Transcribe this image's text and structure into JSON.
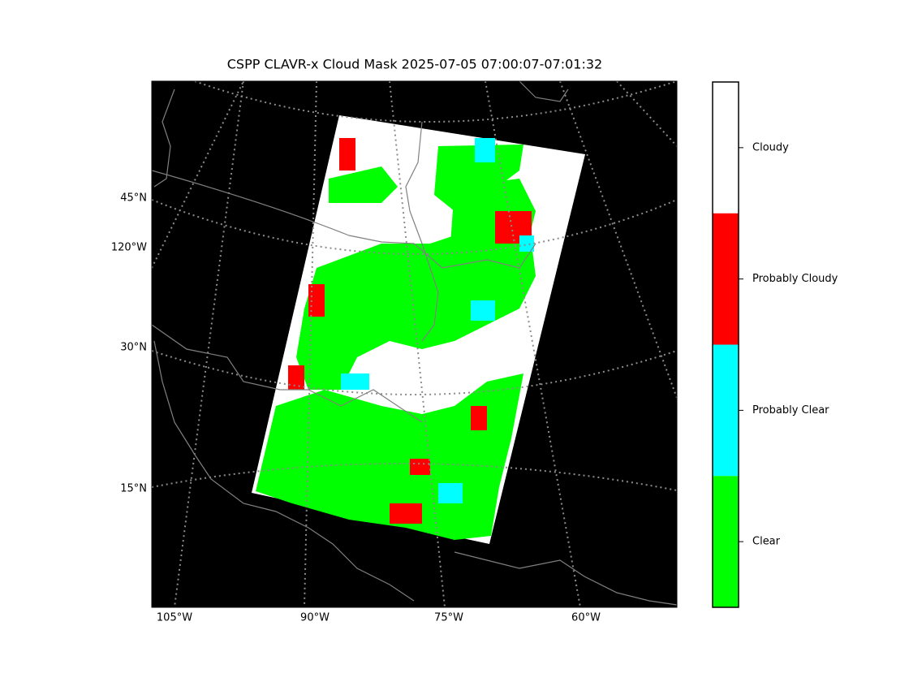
{
  "title": "CSPP CLAVR-x Cloud Mask 2025-07-05 07:00:07-07:01:32",
  "map": {
    "lat_labels": [
      "45°N",
      "120°W",
      "30°N",
      "15°N"
    ],
    "lon_labels": [
      "105°W",
      "90°W",
      "75°W",
      "60°W"
    ]
  },
  "colorbar": {
    "classes": [
      {
        "label": "Cloudy",
        "color": "#ffffff"
      },
      {
        "label": "Probably Cloudy",
        "color": "#ff0000"
      },
      {
        "label": "Probably Clear",
        "color": "#00ffff"
      },
      {
        "label": "Clear",
        "color": "#00ff00"
      }
    ]
  }
}
